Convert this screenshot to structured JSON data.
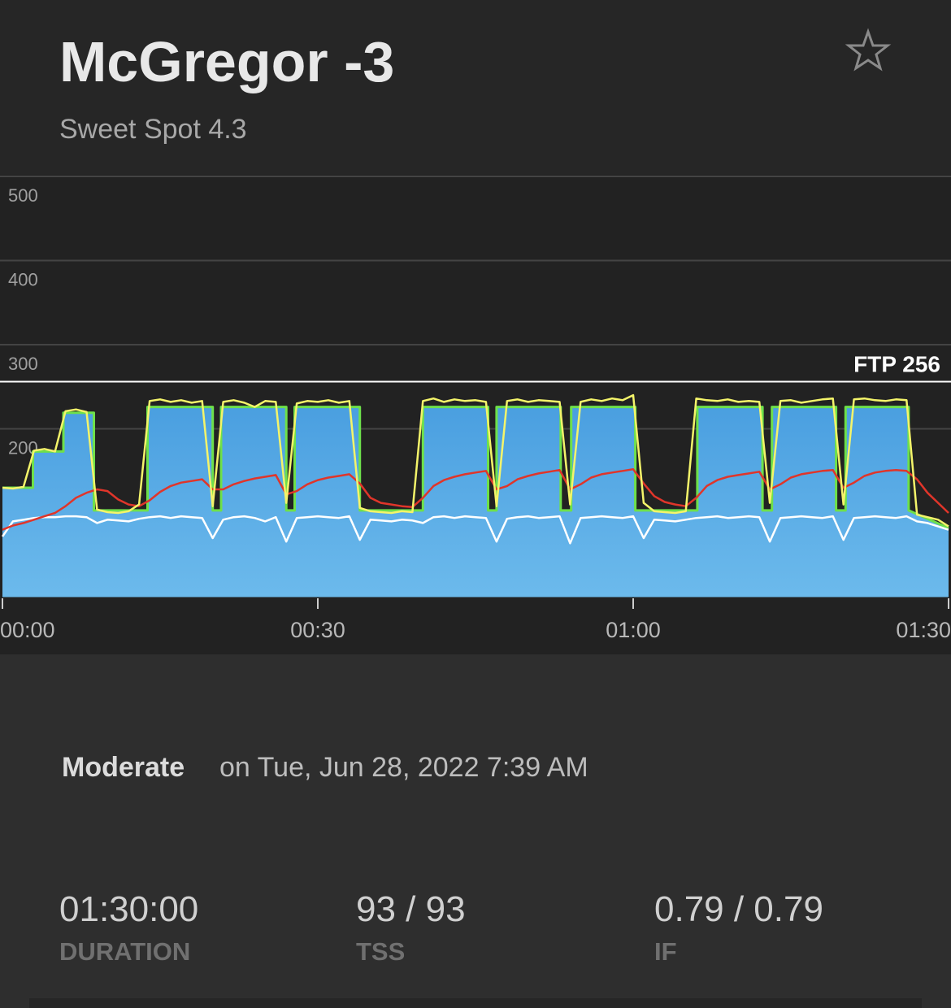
{
  "header": {
    "title": "McGregor -3",
    "subtitle": "Sweet Spot 4.3"
  },
  "chart_data": {
    "type": "line",
    "x": [
      0,
      1,
      2,
      3,
      4,
      5,
      6,
      7,
      8,
      9,
      10,
      11,
      12,
      13,
      14,
      15,
      16,
      17,
      18,
      19,
      20,
      21,
      22,
      23,
      24,
      25,
      26,
      27,
      28,
      29,
      30,
      31,
      32,
      33,
      34,
      35,
      36,
      37,
      38,
      39,
      40,
      41,
      42,
      43,
      44,
      45,
      46,
      47,
      48,
      49,
      50,
      51,
      52,
      53,
      54,
      55,
      56,
      57,
      58,
      59,
      60,
      61,
      62,
      63,
      64,
      65,
      66,
      67,
      68,
      69,
      70,
      71,
      72,
      73,
      74,
      75,
      76,
      77,
      78,
      79,
      80,
      81,
      82,
      83,
      84,
      85,
      86,
      87,
      88,
      89,
      90
    ],
    "series": [
      {
        "color": "#6ee04a",
        "fill": "#4a9fe0",
        "x": [
          0,
          2.9,
          2.9,
          5.8,
          5.8,
          8.7,
          8.7,
          13.8,
          13.8,
          20,
          20,
          20.8,
          20.8,
          27,
          27,
          27.8,
          27.8,
          34,
          34,
          40,
          40,
          46.2,
          46.2,
          47,
          47,
          53.1,
          53.1,
          54.1,
          54.1,
          60.2,
          60.2,
          66.1,
          66.1,
          72.3,
          72.3,
          73.2,
          73.2,
          79.3,
          79.3,
          80.2,
          80.2,
          86.2,
          86.2,
          90
        ],
        "values": [
          130,
          130,
          173,
          173,
          219,
          219,
          103,
          103,
          226,
          226,
          103,
          103,
          226,
          226,
          103,
          103,
          226,
          226,
          103,
          103,
          226,
          226,
          103,
          103,
          226,
          226,
          103,
          103,
          226,
          226,
          103,
          103,
          226,
          226,
          103,
          103,
          226,
          226,
          103,
          103,
          226,
          226,
          103,
          82
        ]
      },
      {
        "color": "#ffffff",
        "values": [
          72,
          90,
          92,
          94,
          95,
          95,
          96,
          96,
          95,
          88,
          92,
          91,
          90,
          93,
          95,
          96,
          94,
          96,
          95,
          94,
          70,
          92,
          95,
          96,
          94,
          90,
          95,
          66,
          94,
          95,
          96,
          95,
          94,
          96,
          68,
          92,
          91,
          90,
          92,
          91,
          88,
          95,
          96,
          94,
          96,
          95,
          94,
          66,
          93,
          95,
          96,
          94,
          95,
          96,
          64,
          94,
          95,
          96,
          95,
          94,
          96,
          70,
          92,
          91,
          90,
          92,
          94,
          95,
          96,
          94,
          95,
          96,
          95,
          66,
          94,
          95,
          96,
          95,
          94,
          96,
          68,
          94,
          95,
          96,
          95,
          94,
          96,
          90,
          88,
          84,
          80
        ]
      },
      {
        "color": "#e0352a",
        "values": [
          80,
          85,
          88,
          92,
          96,
          100,
          108,
          118,
          124,
          128,
          126,
          116,
          110,
          108,
          115,
          125,
          132,
          136,
          138,
          140,
          128,
          128,
          134,
          138,
          141,
          143,
          145,
          122,
          126,
          134,
          139,
          142,
          144,
          146,
          135,
          118,
          112,
          110,
          108,
          107,
          118,
          132,
          139,
          143,
          146,
          148,
          150,
          128,
          132,
          140,
          144,
          147,
          149,
          151,
          128,
          134,
          142,
          146,
          148,
          150,
          152,
          135,
          120,
          113,
          110,
          108,
          118,
          132,
          139,
          143,
          145,
          147,
          149,
          128,
          134,
          142,
          146,
          148,
          150,
          151,
          130,
          136,
          144,
          148,
          150,
          151,
          150,
          140,
          124,
          112,
          100
        ]
      },
      {
        "color": "#f4f46a",
        "values": [
          130,
          129,
          131,
          174,
          176,
          173,
          221,
          223,
          220,
          104,
          101,
          100,
          102,
          110,
          233,
          235,
          232,
          234,
          231,
          233,
          108,
          232,
          234,
          231,
          226,
          233,
          232,
          112,
          230,
          233,
          232,
          234,
          231,
          233,
          106,
          102,
          101,
          100,
          102,
          101,
          233,
          236,
          232,
          235,
          233,
          234,
          232,
          108,
          233,
          235,
          232,
          234,
          233,
          232,
          110,
          232,
          235,
          233,
          236,
          234,
          240,
          112,
          102,
          101,
          100,
          102,
          236,
          234,
          233,
          235,
          232,
          233,
          232,
          112,
          233,
          234,
          231,
          233,
          235,
          236,
          110,
          235,
          236,
          234,
          233,
          235,
          234,
          98,
          95,
          92,
          84
        ]
      }
    ],
    "xlim": [
      0,
      90
    ],
    "xticks": [
      {
        "value": 0,
        "label": "00:00"
      },
      {
        "value": 30,
        "label": "00:30"
      },
      {
        "value": 60,
        "label": "01:00"
      },
      {
        "value": 90,
        "label": "01:30"
      }
    ],
    "ylim": [
      0,
      500
    ],
    "yticks": [
      200,
      300,
      400,
      500
    ],
    "grid": true,
    "ftp": {
      "value": 256,
      "label": "FTP 256"
    }
  },
  "details": {
    "intensity": "Moderate",
    "date": "on Tue, Jun 28, 2022 7:39 AM"
  },
  "stats": [
    {
      "value": "01:30:00",
      "label": "DURATION"
    },
    {
      "value": "93 / 93",
      "label": "TSS"
    },
    {
      "value": "0.79 / 0.79",
      "label": "IF"
    }
  ]
}
